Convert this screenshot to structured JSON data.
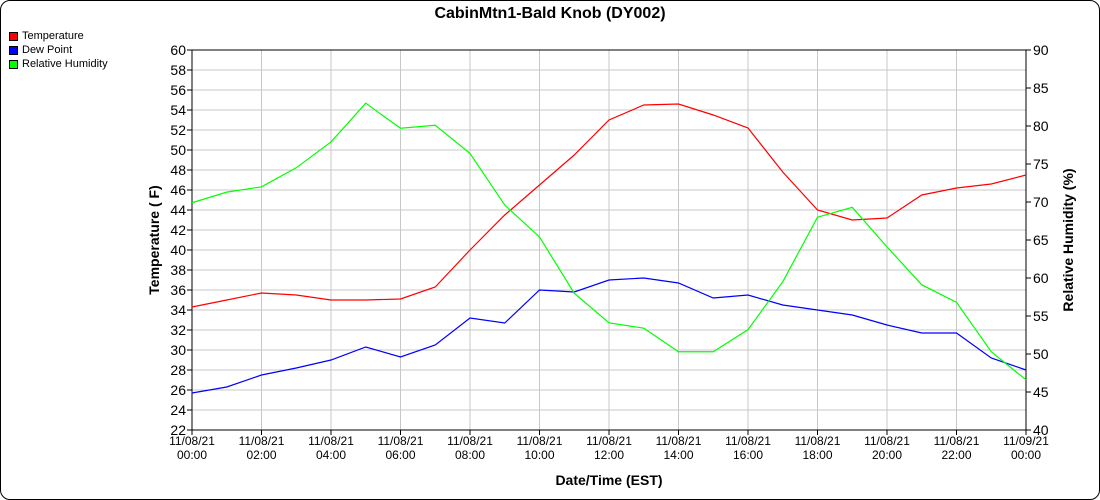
{
  "chart_data": {
    "type": "line",
    "title": "CabinMtn1-Bald Knob (DY002)",
    "xlabel": "Date/Time (EST)",
    "ylabel": "Temperature ( F)",
    "y2label": "Relative Humidity (%)",
    "ylim": [
      22,
      60
    ],
    "y2lim": [
      40,
      90
    ],
    "grid": true,
    "legend_position": "top-left outside",
    "x_ticks": [
      [
        "11/08/21",
        "00:00"
      ],
      [
        "11/08/21",
        "02:00"
      ],
      [
        "11/08/21",
        "04:00"
      ],
      [
        "11/08/21",
        "06:00"
      ],
      [
        "11/08/21",
        "08:00"
      ],
      [
        "11/08/21",
        "10:00"
      ],
      [
        "11/08/21",
        "12:00"
      ],
      [
        "11/08/21",
        "14:00"
      ],
      [
        "11/08/21",
        "16:00"
      ],
      [
        "11/08/21",
        "18:00"
      ],
      [
        "11/08/21",
        "20:00"
      ],
      [
        "11/08/21",
        "22:00"
      ],
      [
        "11/09/21",
        "00:00"
      ]
    ],
    "x": [
      "11/08/21 00:00",
      "11/08/21 01:00",
      "11/08/21 02:00",
      "11/08/21 03:00",
      "11/08/21 04:00",
      "11/08/21 05:00",
      "11/08/21 06:00",
      "11/08/21 07:00",
      "11/08/21 08:00",
      "11/08/21 09:00",
      "11/08/21 10:00",
      "11/08/21 11:00",
      "11/08/21 12:00",
      "11/08/21 13:00",
      "11/08/21 14:00",
      "11/08/21 15:00",
      "11/08/21 16:00",
      "11/08/21 17:00",
      "11/08/21 18:00",
      "11/08/21 19:00",
      "11/08/21 20:00",
      "11/08/21 21:00",
      "11/08/21 22:00",
      "11/08/21 23:00",
      "11/09/21 00:00"
    ],
    "series": [
      {
        "name": "Temperature",
        "axis": "left",
        "color": "#ff0000",
        "values": [
          34.3,
          35.0,
          35.7,
          35.5,
          35.0,
          35.0,
          35.1,
          36.3,
          40.0,
          43.5,
          46.5,
          49.5,
          53.0,
          54.5,
          54.6,
          53.5,
          52.2,
          47.8,
          44.0,
          43.0,
          43.2,
          45.5,
          46.2,
          46.6,
          47.5
        ]
      },
      {
        "name": "Dew Point",
        "axis": "left",
        "color": "#0000ff",
        "values": [
          25.7,
          26.3,
          27.5,
          28.2,
          29.0,
          30.3,
          29.3,
          30.5,
          33.2,
          32.7,
          36.0,
          35.8,
          37.0,
          37.2,
          36.7,
          35.2,
          35.5,
          34.5,
          34.0,
          33.5,
          32.5,
          31.7,
          31.7,
          29.2,
          28.0
        ]
      },
      {
        "name": "Relative Humidity",
        "axis": "right",
        "color": "#00ff00",
        "values": [
          69.9,
          71.3,
          72.0,
          74.5,
          77.9,
          83.0,
          79.7,
          80.1,
          76.4,
          69.6,
          65.4,
          58.0,
          54.1,
          53.4,
          50.3,
          50.3,
          53.2,
          59.5,
          68.0,
          69.3,
          64.1,
          59.1,
          56.8,
          50.3,
          46.6
        ]
      }
    ]
  }
}
